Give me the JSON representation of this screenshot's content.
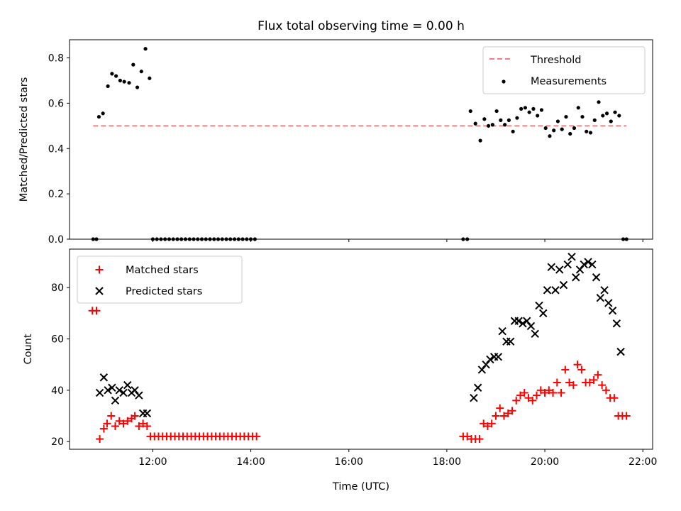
{
  "chart_data": {
    "type": "scatter",
    "title": "Flux total observing time = 0.00 h",
    "xlabel": "Time (UTC)",
    "xlim": [
      "10:18",
      "22:12"
    ],
    "xticks": [
      "12:00",
      "14:00",
      "16:00",
      "18:00",
      "20:00",
      "22:00"
    ],
    "panels": [
      {
        "id": "top",
        "ylabel": "Matched/Predicted stars",
        "ylim": [
          0,
          0.88
        ],
        "yticks": [
          "0.0",
          "0.2",
          "0.4",
          "0.6",
          "0.8"
        ],
        "legend_position": "top-right",
        "threshold": {
          "name": "Threshold",
          "value": 0.5,
          "x_start": "10:47",
          "x_end": "21:40",
          "color": "#f08080"
        },
        "measurements": {
          "name": "Measurements",
          "color": "#000000",
          "points": [
            [
              "10:47",
              0
            ],
            [
              "10:51",
              0
            ],
            [
              "10:54",
              0.54
            ],
            [
              "10:59",
              0.555
            ],
            [
              "11:05",
              0.675
            ],
            [
              "11:10",
              0.73
            ],
            [
              "11:15",
              0.72
            ],
            [
              "11:20",
              0.7
            ],
            [
              "11:25",
              0.695
            ],
            [
              "11:31",
              0.69
            ],
            [
              "11:36",
              0.77
            ],
            [
              "11:41",
              0.67
            ],
            [
              "11:46",
              0.74
            ],
            [
              "11:51",
              0.84
            ],
            [
              "11:56",
              0.71
            ],
            [
              "12:00",
              0
            ],
            [
              "12:05",
              0
            ],
            [
              "12:10",
              0
            ],
            [
              "12:15",
              0
            ],
            [
              "12:20",
              0
            ],
            [
              "12:25",
              0
            ],
            [
              "12:30",
              0
            ],
            [
              "12:35",
              0
            ],
            [
              "12:40",
              0
            ],
            [
              "12:45",
              0
            ],
            [
              "12:50",
              0
            ],
            [
              "12:55",
              0
            ],
            [
              "13:00",
              0
            ],
            [
              "13:05",
              0
            ],
            [
              "13:10",
              0
            ],
            [
              "13:15",
              0
            ],
            [
              "13:20",
              0
            ],
            [
              "13:25",
              0
            ],
            [
              "13:30",
              0
            ],
            [
              "13:35",
              0
            ],
            [
              "13:40",
              0
            ],
            [
              "13:45",
              0
            ],
            [
              "13:50",
              0
            ],
            [
              "13:55",
              0
            ],
            [
              "14:00",
              0
            ],
            [
              "14:05",
              0
            ],
            [
              "18:20",
              0
            ],
            [
              "18:25",
              0
            ],
            [
              "18:29",
              0.565
            ],
            [
              "18:35",
              0.51
            ],
            [
              "18:41",
              0.435
            ],
            [
              "18:46",
              0.53
            ],
            [
              "18:51",
              0.5
            ],
            [
              "18:56",
              0.505
            ],
            [
              "19:01",
              0.565
            ],
            [
              "19:06",
              0.525
            ],
            [
              "19:11",
              0.505
            ],
            [
              "19:16",
              0.525
            ],
            [
              "19:21",
              0.475
            ],
            [
              "19:26",
              0.535
            ],
            [
              "19:31",
              0.575
            ],
            [
              "19:36",
              0.58
            ],
            [
              "19:41",
              0.56
            ],
            [
              "19:46",
              0.575
            ],
            [
              "19:51",
              0.545
            ],
            [
              "19:56",
              0.57
            ],
            [
              "20:01",
              0.49
            ],
            [
              "20:06",
              0.455
            ],
            [
              "20:11",
              0.48
            ],
            [
              "20:16",
              0.52
            ],
            [
              "20:21",
              0.485
            ],
            [
              "20:26",
              0.54
            ],
            [
              "20:31",
              0.465
            ],
            [
              "20:36",
              0.49
            ],
            [
              "20:41",
              0.58
            ],
            [
              "20:46",
              0.54
            ],
            [
              "20:51",
              0.475
            ],
            [
              "20:56",
              0.47
            ],
            [
              "21:01",
              0.525
            ],
            [
              "21:06",
              0.605
            ],
            [
              "21:11",
              0.545
            ],
            [
              "21:16",
              0.555
            ],
            [
              "21:21",
              0.52
            ],
            [
              "21:26",
              0.56
            ],
            [
              "21:31",
              0.545
            ],
            [
              "21:36",
              0
            ],
            [
              "21:40",
              0
            ]
          ]
        }
      },
      {
        "id": "bottom",
        "ylabel": "Count",
        "ylim": [
          17,
          95
        ],
        "yticks": [
          "20",
          "40",
          "60",
          "80"
        ],
        "legend_position": "top-left",
        "series": [
          {
            "name": "Matched stars",
            "marker": "plus",
            "color": "#ff0000",
            "points": [
              [
                "10:46",
                71
              ],
              [
                "10:51",
                71
              ],
              [
                "10:55",
                21
              ],
              [
                "11:00",
                25
              ],
              [
                "11:04",
                27
              ],
              [
                "11:09",
                30
              ],
              [
                "11:14",
                26
              ],
              [
                "11:19",
                28
              ],
              [
                "11:24",
                27
              ],
              [
                "11:29",
                28
              ],
              [
                "11:34",
                29
              ],
              [
                "11:38",
                30
              ],
              [
                "11:43",
                26
              ],
              [
                "11:48",
                27
              ],
              [
                "11:53",
                26
              ],
              [
                "11:57",
                22
              ],
              [
                "12:02",
                22
              ],
              [
                "12:07",
                22
              ],
              [
                "12:12",
                22
              ],
              [
                "12:17",
                22
              ],
              [
                "12:22",
                22
              ],
              [
                "12:27",
                22
              ],
              [
                "12:32",
                22
              ],
              [
                "12:37",
                22
              ],
              [
                "12:42",
                22
              ],
              [
                "12:47",
                22
              ],
              [
                "12:52",
                22
              ],
              [
                "12:57",
                22
              ],
              [
                "13:02",
                22
              ],
              [
                "13:07",
                22
              ],
              [
                "13:12",
                22
              ],
              [
                "13:17",
                22
              ],
              [
                "13:22",
                22
              ],
              [
                "13:27",
                22
              ],
              [
                "13:32",
                22
              ],
              [
                "13:37",
                22
              ],
              [
                "13:42",
                22
              ],
              [
                "13:47",
                22
              ],
              [
                "13:52",
                22
              ],
              [
                "13:57",
                22
              ],
              [
                "14:02",
                22
              ],
              [
                "14:07",
                22
              ],
              [
                "18:20",
                22
              ],
              [
                "18:25",
                22
              ],
              [
                "18:30",
                21
              ],
              [
                "18:35",
                21
              ],
              [
                "18:40",
                21
              ],
              [
                "18:45",
                27
              ],
              [
                "18:50",
                26
              ],
              [
                "18:55",
                27
              ],
              [
                "19:00",
                30
              ],
              [
                "19:05",
                33
              ],
              [
                "19:10",
                30
              ],
              [
                "19:15",
                31
              ],
              [
                "19:20",
                32
              ],
              [
                "19:25",
                36
              ],
              [
                "19:30",
                38
              ],
              [
                "19:35",
                39
              ],
              [
                "19:40",
                37
              ],
              [
                "19:45",
                36
              ],
              [
                "19:50",
                38
              ],
              [
                "19:55",
                40
              ],
              [
                "20:00",
                39
              ],
              [
                "20:05",
                40
              ],
              [
                "20:10",
                39
              ],
              [
                "20:15",
                43
              ],
              [
                "20:20",
                39
              ],
              [
                "20:25",
                48
              ],
              [
                "20:30",
                43
              ],
              [
                "20:35",
                42
              ],
              [
                "20:40",
                50
              ],
              [
                "20:45",
                48
              ],
              [
                "20:50",
                43
              ],
              [
                "20:55",
                43
              ],
              [
                "21:00",
                44
              ],
              [
                "21:05",
                46
              ],
              [
                "21:10",
                42
              ],
              [
                "21:15",
                40
              ],
              [
                "21:20",
                37
              ],
              [
                "21:25",
                37
              ],
              [
                "21:30",
                30
              ],
              [
                "21:35",
                30
              ],
              [
                "21:40",
                30
              ]
            ]
          },
          {
            "name": "Predicted stars",
            "marker": "x",
            "color": "#000000",
            "points": [
              [
                "10:55",
                39
              ],
              [
                "11:00",
                45
              ],
              [
                "11:05",
                40
              ],
              [
                "11:10",
                41
              ],
              [
                "11:14",
                36
              ],
              [
                "11:19",
                40
              ],
              [
                "11:24",
                39
              ],
              [
                "11:29",
                42
              ],
              [
                "11:34",
                39
              ],
              [
                "11:38",
                40
              ],
              [
                "11:43",
                38
              ],
              [
                "11:48",
                31
              ],
              [
                "11:53",
                31
              ],
              [
                "18:33",
                37
              ],
              [
                "18:38",
                41
              ],
              [
                "18:43",
                48
              ],
              [
                "18:48",
                50
              ],
              [
                "18:53",
                52
              ],
              [
                "18:58",
                53
              ],
              [
                "19:03",
                53
              ],
              [
                "19:08",
                63
              ],
              [
                "19:13",
                59
              ],
              [
                "19:18",
                59
              ],
              [
                "19:23",
                67
              ],
              [
                "19:28",
                67
              ],
              [
                "19:33",
                66
              ],
              [
                "19:38",
                67
              ],
              [
                "19:43",
                65
              ],
              [
                "19:48",
                62
              ],
              [
                "19:53",
                73
              ],
              [
                "19:58",
                70
              ],
              [
                "20:03",
                79
              ],
              [
                "20:08",
                88
              ],
              [
                "20:13",
                79
              ],
              [
                "20:18",
                87
              ],
              [
                "20:23",
                81
              ],
              [
                "20:28",
                89
              ],
              [
                "20:33",
                92
              ],
              [
                "20:38",
                84
              ],
              [
                "20:43",
                87
              ],
              [
                "20:48",
                89
              ],
              [
                "20:53",
                90
              ],
              [
                "20:58",
                89
              ],
              [
                "21:03",
                84
              ],
              [
                "21:08",
                76
              ],
              [
                "21:13",
                79
              ],
              [
                "21:18",
                74
              ],
              [
                "21:23",
                71
              ],
              [
                "21:28",
                66
              ],
              [
                "21:33",
                55
              ]
            ]
          }
        ]
      }
    ]
  }
}
